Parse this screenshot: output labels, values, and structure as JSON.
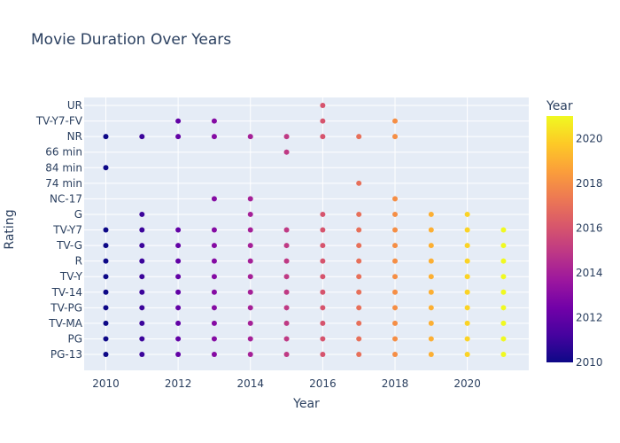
{
  "chart_data": {
    "type": "scatter",
    "title": "Movie Duration Over Years",
    "xlabel": "Year",
    "ylabel": "Rating",
    "xlim": [
      2009.4,
      2021.7
    ],
    "x_ticks": [
      2010,
      2012,
      2014,
      2016,
      2018,
      2020
    ],
    "y_categories": [
      "PG-13",
      "PG",
      "TV-MA",
      "TV-PG",
      "TV-14",
      "TV-Y",
      "R",
      "TV-G",
      "TV-Y7",
      "G",
      "NC-17",
      "74 min",
      "84 min",
      "66 min",
      "NR",
      "TV-Y7-FV",
      "UR"
    ],
    "color_axis": {
      "title": "Year",
      "range": [
        2010,
        2021
      ],
      "ticks": [
        2010,
        2012,
        2014,
        2016,
        2018,
        2020
      ],
      "colorscale": [
        "#0d0887",
        "#46039f",
        "#7201a8",
        "#9c179e",
        "#bd3786",
        "#d8576b",
        "#ed7953",
        "#fb9f3a",
        "#fdca26",
        "#f0f921"
      ]
    },
    "points": [
      {
        "x": 2010,
        "rating": "PG-13"
      },
      {
        "x": 2011,
        "rating": "PG-13"
      },
      {
        "x": 2012,
        "rating": "PG-13"
      },
      {
        "x": 2013,
        "rating": "PG-13"
      },
      {
        "x": 2014,
        "rating": "PG-13"
      },
      {
        "x": 2015,
        "rating": "PG-13"
      },
      {
        "x": 2016,
        "rating": "PG-13"
      },
      {
        "x": 2017,
        "rating": "PG-13"
      },
      {
        "x": 2018,
        "rating": "PG-13"
      },
      {
        "x": 2019,
        "rating": "PG-13"
      },
      {
        "x": 2020,
        "rating": "PG-13"
      },
      {
        "x": 2021,
        "rating": "PG-13"
      },
      {
        "x": 2010,
        "rating": "PG"
      },
      {
        "x": 2011,
        "rating": "PG"
      },
      {
        "x": 2012,
        "rating": "PG"
      },
      {
        "x": 2013,
        "rating": "PG"
      },
      {
        "x": 2014,
        "rating": "PG"
      },
      {
        "x": 2015,
        "rating": "PG"
      },
      {
        "x": 2016,
        "rating": "PG"
      },
      {
        "x": 2017,
        "rating": "PG"
      },
      {
        "x": 2018,
        "rating": "PG"
      },
      {
        "x": 2019,
        "rating": "PG"
      },
      {
        "x": 2020,
        "rating": "PG"
      },
      {
        "x": 2021,
        "rating": "PG"
      },
      {
        "x": 2010,
        "rating": "TV-MA"
      },
      {
        "x": 2011,
        "rating": "TV-MA"
      },
      {
        "x": 2012,
        "rating": "TV-MA"
      },
      {
        "x": 2013,
        "rating": "TV-MA"
      },
      {
        "x": 2014,
        "rating": "TV-MA"
      },
      {
        "x": 2015,
        "rating": "TV-MA"
      },
      {
        "x": 2016,
        "rating": "TV-MA"
      },
      {
        "x": 2017,
        "rating": "TV-MA"
      },
      {
        "x": 2018,
        "rating": "TV-MA"
      },
      {
        "x": 2019,
        "rating": "TV-MA"
      },
      {
        "x": 2020,
        "rating": "TV-MA"
      },
      {
        "x": 2021,
        "rating": "TV-MA"
      },
      {
        "x": 2010,
        "rating": "TV-PG"
      },
      {
        "x": 2011,
        "rating": "TV-PG"
      },
      {
        "x": 2012,
        "rating": "TV-PG"
      },
      {
        "x": 2013,
        "rating": "TV-PG"
      },
      {
        "x": 2014,
        "rating": "TV-PG"
      },
      {
        "x": 2015,
        "rating": "TV-PG"
      },
      {
        "x": 2016,
        "rating": "TV-PG"
      },
      {
        "x": 2017,
        "rating": "TV-PG"
      },
      {
        "x": 2018,
        "rating": "TV-PG"
      },
      {
        "x": 2019,
        "rating": "TV-PG"
      },
      {
        "x": 2020,
        "rating": "TV-PG"
      },
      {
        "x": 2021,
        "rating": "TV-PG"
      },
      {
        "x": 2010,
        "rating": "TV-14"
      },
      {
        "x": 2011,
        "rating": "TV-14"
      },
      {
        "x": 2012,
        "rating": "TV-14"
      },
      {
        "x": 2013,
        "rating": "TV-14"
      },
      {
        "x": 2014,
        "rating": "TV-14"
      },
      {
        "x": 2015,
        "rating": "TV-14"
      },
      {
        "x": 2016,
        "rating": "TV-14"
      },
      {
        "x": 2017,
        "rating": "TV-14"
      },
      {
        "x": 2018,
        "rating": "TV-14"
      },
      {
        "x": 2019,
        "rating": "TV-14"
      },
      {
        "x": 2020,
        "rating": "TV-14"
      },
      {
        "x": 2021,
        "rating": "TV-14"
      },
      {
        "x": 2010,
        "rating": "TV-Y"
      },
      {
        "x": 2011,
        "rating": "TV-Y"
      },
      {
        "x": 2012,
        "rating": "TV-Y"
      },
      {
        "x": 2013,
        "rating": "TV-Y"
      },
      {
        "x": 2014,
        "rating": "TV-Y"
      },
      {
        "x": 2015,
        "rating": "TV-Y"
      },
      {
        "x": 2016,
        "rating": "TV-Y"
      },
      {
        "x": 2017,
        "rating": "TV-Y"
      },
      {
        "x": 2018,
        "rating": "TV-Y"
      },
      {
        "x": 2019,
        "rating": "TV-Y"
      },
      {
        "x": 2020,
        "rating": "TV-Y"
      },
      {
        "x": 2021,
        "rating": "TV-Y"
      },
      {
        "x": 2010,
        "rating": "R"
      },
      {
        "x": 2011,
        "rating": "R"
      },
      {
        "x": 2012,
        "rating": "R"
      },
      {
        "x": 2013,
        "rating": "R"
      },
      {
        "x": 2014,
        "rating": "R"
      },
      {
        "x": 2015,
        "rating": "R"
      },
      {
        "x": 2016,
        "rating": "R"
      },
      {
        "x": 2017,
        "rating": "R"
      },
      {
        "x": 2018,
        "rating": "R"
      },
      {
        "x": 2019,
        "rating": "R"
      },
      {
        "x": 2020,
        "rating": "R"
      },
      {
        "x": 2021,
        "rating": "R"
      },
      {
        "x": 2010,
        "rating": "TV-G"
      },
      {
        "x": 2011,
        "rating": "TV-G"
      },
      {
        "x": 2012,
        "rating": "TV-G"
      },
      {
        "x": 2013,
        "rating": "TV-G"
      },
      {
        "x": 2014,
        "rating": "TV-G"
      },
      {
        "x": 2015,
        "rating": "TV-G"
      },
      {
        "x": 2016,
        "rating": "TV-G"
      },
      {
        "x": 2017,
        "rating": "TV-G"
      },
      {
        "x": 2018,
        "rating": "TV-G"
      },
      {
        "x": 2019,
        "rating": "TV-G"
      },
      {
        "x": 2020,
        "rating": "TV-G"
      },
      {
        "x": 2021,
        "rating": "TV-G"
      },
      {
        "x": 2010,
        "rating": "TV-Y7"
      },
      {
        "x": 2011,
        "rating": "TV-Y7"
      },
      {
        "x": 2012,
        "rating": "TV-Y7"
      },
      {
        "x": 2013,
        "rating": "TV-Y7"
      },
      {
        "x": 2014,
        "rating": "TV-Y7"
      },
      {
        "x": 2015,
        "rating": "TV-Y7"
      },
      {
        "x": 2016,
        "rating": "TV-Y7"
      },
      {
        "x": 2017,
        "rating": "TV-Y7"
      },
      {
        "x": 2018,
        "rating": "TV-Y7"
      },
      {
        "x": 2019,
        "rating": "TV-Y7"
      },
      {
        "x": 2020,
        "rating": "TV-Y7"
      },
      {
        "x": 2021,
        "rating": "TV-Y7"
      },
      {
        "x": 2011,
        "rating": "G"
      },
      {
        "x": 2014,
        "rating": "G"
      },
      {
        "x": 2016,
        "rating": "G"
      },
      {
        "x": 2017,
        "rating": "G"
      },
      {
        "x": 2018,
        "rating": "G"
      },
      {
        "x": 2019,
        "rating": "G"
      },
      {
        "x": 2020,
        "rating": "G"
      },
      {
        "x": 2013,
        "rating": "NC-17"
      },
      {
        "x": 2014,
        "rating": "NC-17"
      },
      {
        "x": 2018,
        "rating": "NC-17"
      },
      {
        "x": 2017,
        "rating": "74 min"
      },
      {
        "x": 2010,
        "rating": "84 min"
      },
      {
        "x": 2015,
        "rating": "66 min"
      },
      {
        "x": 2010,
        "rating": "NR"
      },
      {
        "x": 2011,
        "rating": "NR"
      },
      {
        "x": 2012,
        "rating": "NR"
      },
      {
        "x": 2013,
        "rating": "NR"
      },
      {
        "x": 2014,
        "rating": "NR"
      },
      {
        "x": 2015,
        "rating": "NR"
      },
      {
        "x": 2016,
        "rating": "NR"
      },
      {
        "x": 2017,
        "rating": "NR"
      },
      {
        "x": 2018,
        "rating": "NR"
      },
      {
        "x": 2012,
        "rating": "TV-Y7-FV"
      },
      {
        "x": 2013,
        "rating": "TV-Y7-FV"
      },
      {
        "x": 2016,
        "rating": "TV-Y7-FV"
      },
      {
        "x": 2018,
        "rating": "TV-Y7-FV"
      },
      {
        "x": 2016,
        "rating": "UR"
      }
    ]
  }
}
